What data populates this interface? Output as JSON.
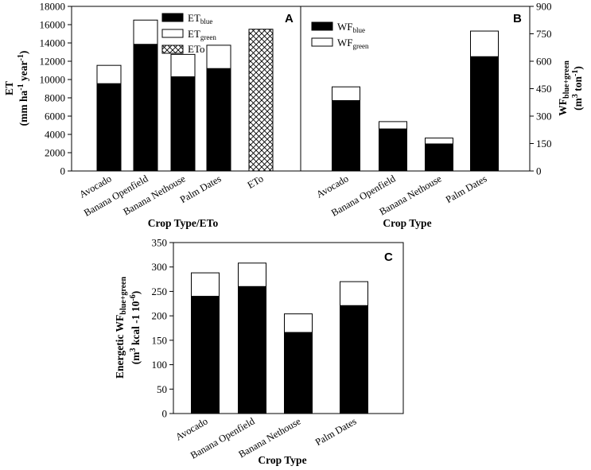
{
  "colors": {
    "blue": "#000000",
    "green": "#ffffff",
    "eto_hatch": "#000000",
    "axis": "#000000"
  },
  "chart_data": [
    {
      "panel_label": "A",
      "type": "bar",
      "stacked": true,
      "categories": [
        "Avocado",
        "Banana Openfield",
        "Banana Nethouse",
        "Palm Dates",
        "ETo"
      ],
      "series": [
        {
          "name": "ETblue",
          "values": [
            9550,
            13850,
            10300,
            11200,
            0
          ]
        },
        {
          "name": "ETgreen",
          "values": [
            2000,
            2650,
            2450,
            2550,
            0
          ]
        },
        {
          "name": "ETo",
          "values": [
            0,
            0,
            0,
            0,
            15500
          ]
        }
      ],
      "legend": [
        {
          "base": "ET",
          "sub": "blue"
        },
        {
          "base": "ET",
          "sub": "green"
        },
        {
          "base": "ETo",
          "sub": ""
        }
      ],
      "ylim": [
        0,
        18000
      ],
      "yticks": [
        0,
        2000,
        4000,
        6000,
        8000,
        10000,
        12000,
        14000,
        16000,
        18000
      ],
      "ylabel": {
        "line1": "ET",
        "line2_pre": "(mm  ha",
        "line2_exp1": "-1",
        "line2_mid": "  year",
        "line2_exp2": "-1",
        "line2_post": ")"
      },
      "xlabel": "Crop Type/ETo"
    },
    {
      "panel_label": "B",
      "type": "bar",
      "stacked": true,
      "categories": [
        "Avocado",
        "Banana Openfield",
        "Banana Nethouse",
        "Palm Dates"
      ],
      "series": [
        {
          "name": "WFblue",
          "values": [
            385,
            230,
            148,
            625
          ]
        },
        {
          "name": "WFgreen",
          "values": [
            75,
            40,
            32,
            140
          ]
        }
      ],
      "legend": [
        {
          "base": "WF",
          "sub": "blue"
        },
        {
          "base": "WF",
          "sub": "green"
        }
      ],
      "ylim": [
        0,
        900
      ],
      "yticks": [
        0,
        150,
        300,
        450,
        600,
        750,
        900
      ],
      "ylabel": {
        "line1_base": "WF",
        "line1_sub": "blue+green",
        "line2_pre": "(m",
        "line2_exp1": "3",
        "line2_mid": " ton",
        "line2_exp2": "-1",
        "line2_post": ")"
      },
      "xlabel": "Crop Type"
    },
    {
      "panel_label": "C",
      "type": "bar",
      "stacked": true,
      "categories": [
        "Avocado",
        "Banana Openfield",
        "Banana Nethouse",
        "Palm Dates"
      ],
      "series": [
        {
          "name": "blue",
          "values": [
            240,
            260,
            166,
            221
          ]
        },
        {
          "name": "green",
          "values": [
            48,
            48,
            38,
            49
          ]
        }
      ],
      "ylim": [
        0,
        350
      ],
      "yticks": [
        0,
        50,
        100,
        150,
        200,
        250,
        300,
        350
      ],
      "ylabel": {
        "line1_pre": "Energetic WF",
        "line1_sub": "blue+green",
        "line2_pre": "(m",
        "line2_exp1": "3",
        "line2_mid": "  kcal -1 10",
        "line2_exp2": "-6",
        "line2_post": ")"
      },
      "xlabel": "Crop Type"
    }
  ]
}
